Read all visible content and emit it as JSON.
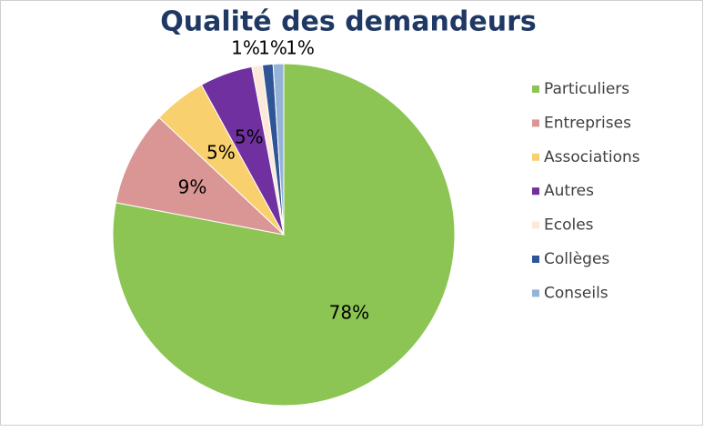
{
  "chart_data": {
    "type": "pie",
    "title": "Qualité des demandeurs",
    "categories": [
      "Particuliers",
      "Entreprises",
      "Associations",
      "Autres",
      "Ecoles",
      "Collèges",
      "Conseils"
    ],
    "values": [
      78,
      9,
      5,
      5,
      1,
      1,
      1
    ],
    "value_labels": [
      "78%",
      "9%",
      "5%",
      "5%",
      "1%",
      "1%",
      "1%"
    ],
    "colors": [
      "#8cc553",
      "#d99694",
      "#f9d06e",
      "#7030a0",
      "#fde9d9",
      "#2f5597",
      "#95b3d7"
    ],
    "legend": "right"
  }
}
